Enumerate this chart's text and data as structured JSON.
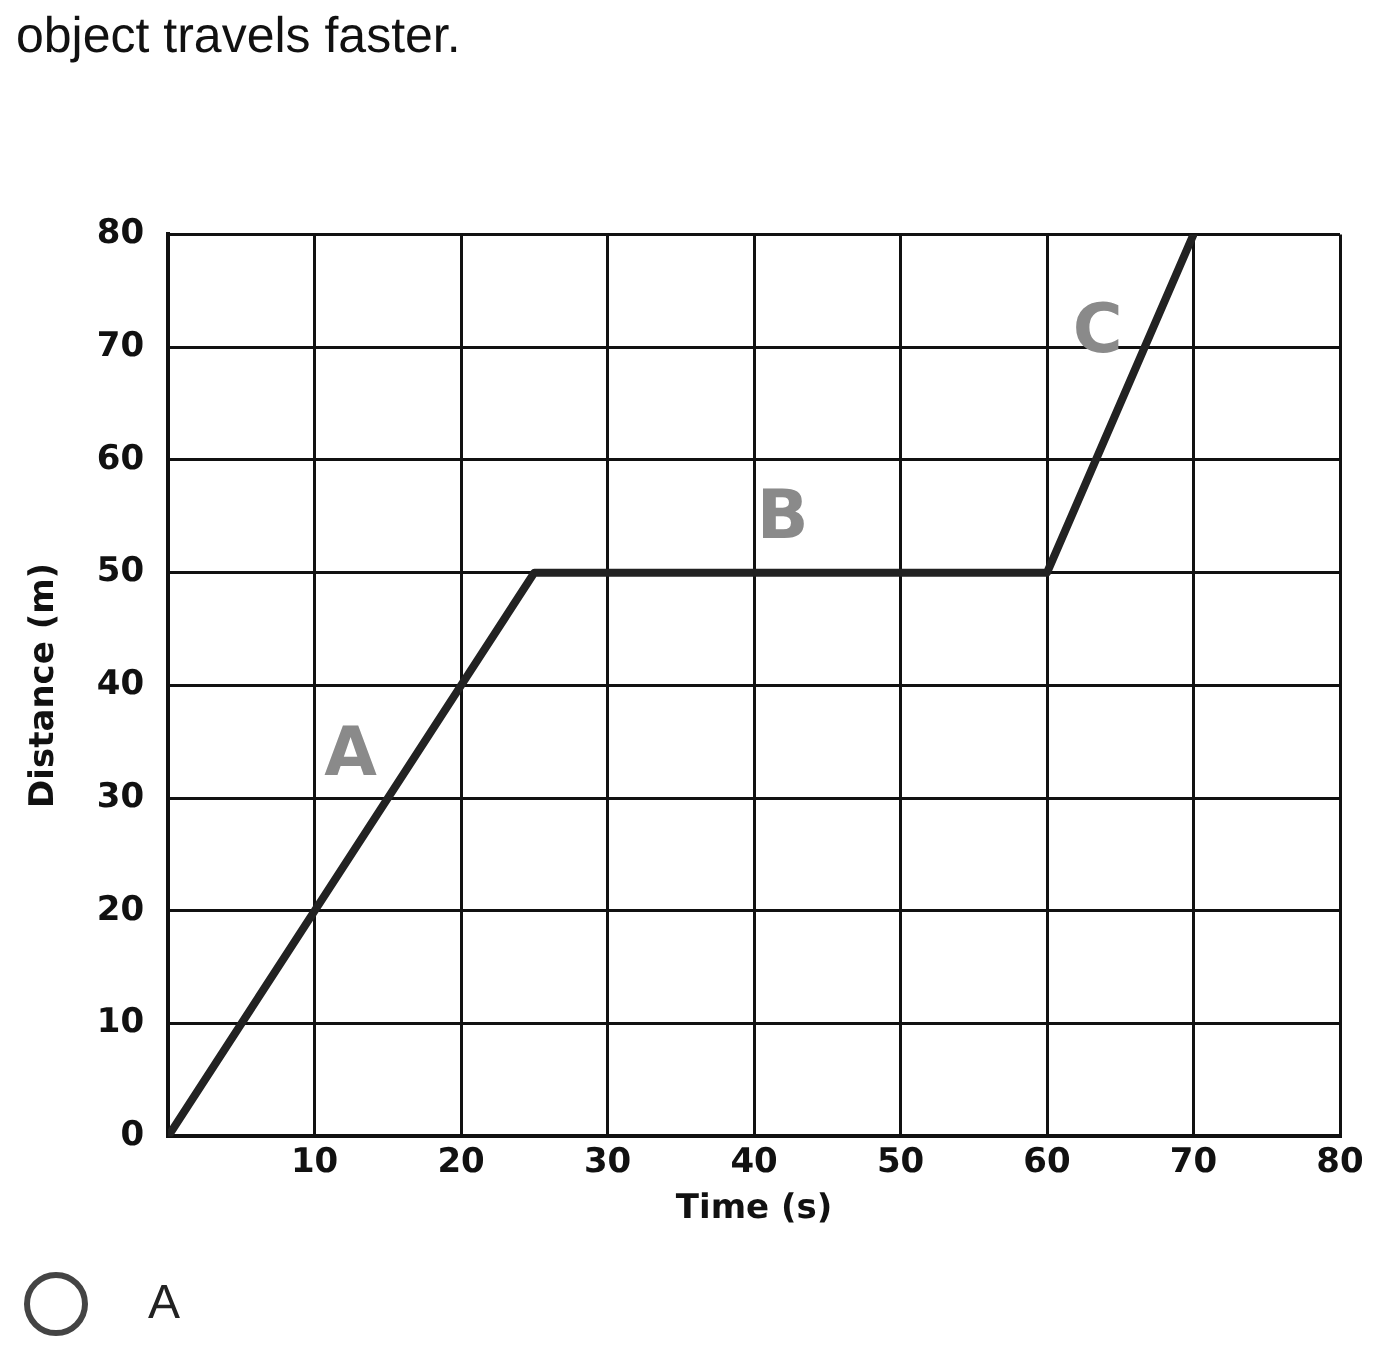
{
  "chart_data": {
    "type": "line",
    "title": "object travels faster.",
    "xlabel": "Time (s)",
    "ylabel": "Distance (m)",
    "x": [
      0,
      10,
      20,
      25,
      60,
      70
    ],
    "series": [
      {
        "color": "#222222",
        "values": [
          0,
          20,
          40,
          50,
          50,
          80
        ]
      }
    ],
    "xlim": [
      0,
      80
    ],
    "ylim": [
      0,
      80
    ],
    "xticks": [
      10,
      20,
      30,
      40,
      50,
      60,
      70,
      80
    ],
    "yticks": [
      0,
      10,
      20,
      30,
      40,
      50,
      60,
      70,
      80
    ],
    "grid": true,
    "legend": false,
    "marker": "none",
    "line_style": "solid",
    "annotations": [
      {
        "text": "A",
        "x": 14.5,
        "y": 29
      },
      {
        "text": "B",
        "x": 44,
        "y": 50
      },
      {
        "text": "C",
        "x": 65.5,
        "y": 66.5
      },
      "A"
    ]
  }
}
